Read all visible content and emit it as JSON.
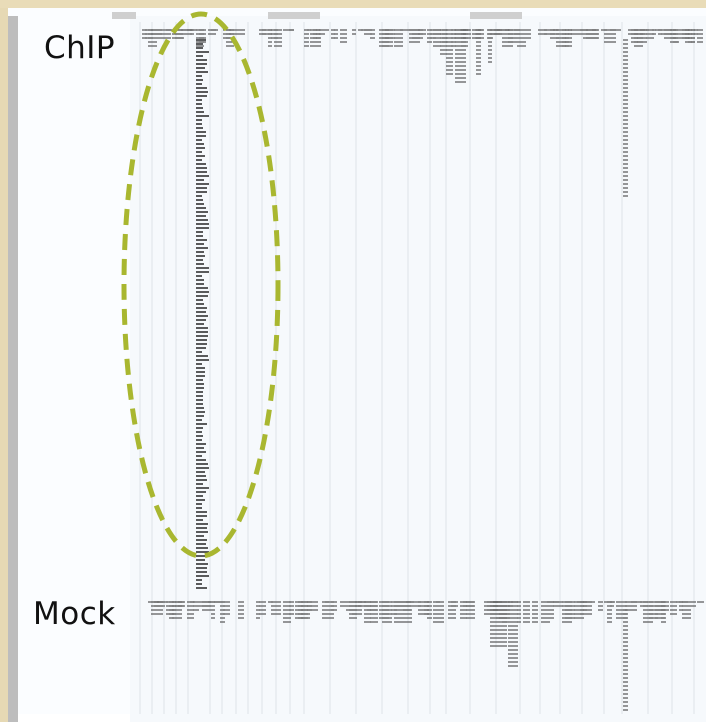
{
  "tracks": {
    "chip": {
      "label": "ChIP"
    },
    "mock": {
      "label": "Mock"
    }
  },
  "colors": {
    "frame_tan": "#e9dcb8",
    "gutter_gray": "#bdbdbd",
    "panel_bg": "#f6f9fc",
    "gridline": "#dde3e9",
    "read": "#555555",
    "peak_ellipse": "#a9b730"
  },
  "icons": {
    "peak_highlight": "dashed-ellipse"
  }
}
